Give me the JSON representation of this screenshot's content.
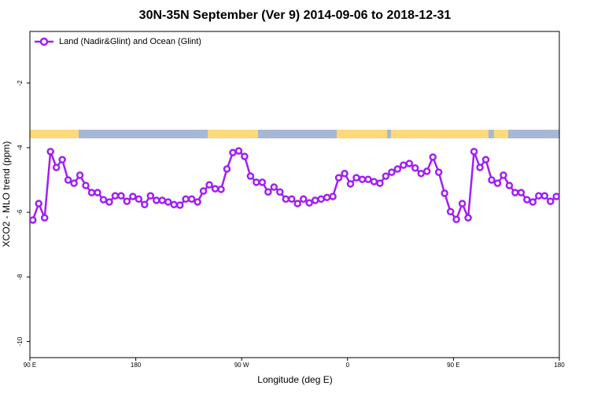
{
  "chart_data": {
    "type": "line",
    "title": "30N-35N September (Ver 9)   2014-09-06 to 2018-12-31",
    "x_label": "Longitude (deg E)",
    "y_label": "XCO2 - MLO trend (ppm)",
    "xlim": [
      90,
      540
    ],
    "ylim": [
      -10.5,
      -0.4
    ],
    "xticks": [
      {
        "value": 90,
        "label": "90 E"
      },
      180,
      {
        "value": 270,
        "label": "90 W"
      },
      {
        "value": 360,
        "label": "0"
      },
      {
        "value": 450,
        "label": "90 E"
      },
      {
        "value": 540,
        "label": "180"
      }
    ],
    "yticks": [
      -2,
      -4,
      -6,
      -8,
      -10
    ],
    "legend": "top-left",
    "x": [
      92.5,
      97.5,
      102.5,
      107.5,
      112.5,
      117.5,
      122.5,
      127.5,
      132.5,
      137.5,
      142.5,
      147.5,
      152.5,
      157.5,
      162.5,
      167.5,
      172.5,
      177.5,
      182.5,
      187.5,
      192.5,
      197.5,
      202.5,
      207.5,
      212.5,
      217.5,
      222.5,
      227.5,
      232.5,
      237.5,
      242.5,
      247.5,
      252.5,
      257.5,
      262.5,
      267.5,
      272.5,
      277.5,
      282.5,
      287.5,
      292.5,
      297.5,
      302.5,
      307.5,
      312.5,
      317.5,
      322.5,
      327.5,
      332.5,
      337.5,
      342.5,
      347.5,
      352.5,
      357.5,
      362.5,
      367.5,
      372.5,
      377.5,
      382.5,
      387.5,
      392.5,
      397.5,
      402.5,
      407.5,
      412.5,
      417.5,
      422.5,
      427.5,
      432.5,
      437.5,
      442.5,
      447.5,
      452.5,
      457.5,
      462.5,
      467.5,
      472.5,
      477.5,
      482.5,
      487.5,
      492.5,
      497.5,
      502.5,
      507.5,
      512.5,
      517.5,
      522.5,
      527.5,
      532.5,
      537.5
    ],
    "series": [
      {
        "name": "Land (Nadir&Glint) and Ocean (Glint)",
        "color": "#a020f0",
        "values": [
          -6.24,
          -5.73,
          -6.17,
          -4.12,
          -4.61,
          -4.37,
          -5.0,
          -5.1,
          -4.85,
          -5.17,
          -5.39,
          -5.39,
          -5.61,
          -5.68,
          -5.49,
          -5.49,
          -5.66,
          -5.51,
          -5.59,
          -5.76,
          -5.49,
          -5.63,
          -5.63,
          -5.68,
          -5.76,
          -5.78,
          -5.59,
          -5.59,
          -5.68,
          -5.34,
          -5.15,
          -5.27,
          -5.29,
          -4.66,
          -4.15,
          -4.1,
          -4.27,
          -4.88,
          -5.07,
          -5.07,
          -5.37,
          -5.22,
          -5.37,
          -5.59,
          -5.59,
          -5.73,
          -5.59,
          -5.71,
          -5.63,
          -5.59,
          -5.54,
          -5.51,
          -4.93,
          -4.8,
          -5.12,
          -4.93,
          -4.98,
          -4.98,
          -5.05,
          -5.1,
          -4.88,
          -4.76,
          -4.66,
          -4.54,
          -4.49,
          -4.63,
          -4.8,
          -4.73,
          -4.29,
          -4.76,
          -5.41,
          -5.98,
          -6.22,
          -5.73,
          -6.17,
          -4.12,
          -4.61,
          -4.37,
          -5.0,
          -5.1,
          -4.85,
          -5.17,
          -5.39,
          -5.39,
          -5.61,
          -5.68,
          -5.49,
          -5.49,
          -5.66,
          -5.51
        ]
      }
    ]
  }
}
